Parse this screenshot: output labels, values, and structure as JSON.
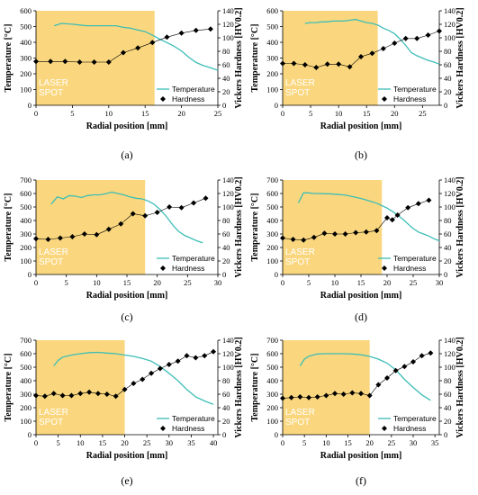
{
  "colors": {
    "laser_zone": "#FAD77E",
    "temperature": "#3DBDB6",
    "hardness": "#000000"
  },
  "chart_data": [
    {
      "type": "line",
      "panel_label": "(a)",
      "xlabel": "Radial position [mm]",
      "ylabel": "Temperature [°C]",
      "y2label": "Vickers Hardness [HV0.2]",
      "xlim": [
        0,
        25
      ],
      "xticks": [
        0,
        5,
        10,
        15,
        20,
        25
      ],
      "ylim": [
        0,
        600
      ],
      "yticks": [
        0,
        100,
        200,
        300,
        400,
        500,
        600
      ],
      "y2lim": [
        0,
        140
      ],
      "y2ticks": [
        0,
        20,
        40,
        60,
        80,
        100,
        120,
        140
      ],
      "laser_spot": {
        "x_end": 16.3,
        "label_lines": [
          "LASER",
          "SPOT"
        ]
      },
      "legend": [
        "Temperature",
        "Hardness"
      ],
      "series": [
        {
          "name": "Temperature",
          "axis": "left",
          "x": [
            2.5,
            3.5,
            5,
            6,
            7,
            8,
            9,
            10,
            11,
            12,
            13,
            14,
            15,
            16,
            17,
            18,
            19,
            20,
            21,
            22,
            23,
            24,
            25
          ],
          "y": [
            505,
            520,
            515,
            510,
            505,
            505,
            505,
            505,
            505,
            495,
            490,
            478,
            468,
            445,
            420,
            398,
            375,
            345,
            305,
            272,
            252,
            238,
            222
          ]
        },
        {
          "name": "Hardness",
          "axis": "right",
          "x": [
            0,
            2,
            4,
            6,
            8,
            10,
            12,
            14,
            16,
            18,
            20,
            22,
            24
          ],
          "y": [
            65,
            65,
            65,
            64,
            64,
            64,
            78,
            85,
            93,
            101,
            107,
            111,
            113
          ]
        }
      ]
    },
    {
      "type": "line",
      "panel_label": "(b)",
      "xlabel": "Radial position [mm]",
      "ylabel": "Temperature [°C]",
      "y2label": "Vickers Hardness [HV0.2]",
      "xlim": [
        0,
        28
      ],
      "xticks": [
        0,
        5,
        10,
        15,
        20,
        25
      ],
      "ylim": [
        0,
        600
      ],
      "yticks": [
        0,
        100,
        200,
        300,
        400,
        500,
        600
      ],
      "y2lim": [
        0,
        140
      ],
      "y2ticks": [
        0,
        20,
        40,
        60,
        80,
        100,
        120,
        140
      ],
      "laser_spot": {
        "x_end": 17,
        "label_lines": [
          "LASER",
          "SPOT"
        ]
      },
      "legend": [
        "Temperature",
        "Hardness"
      ],
      "series": [
        {
          "name": "Temperature",
          "axis": "left",
          "x": [
            4,
            5,
            6,
            7,
            8,
            9,
            10,
            11,
            12,
            13,
            14,
            15,
            16,
            17,
            18,
            19,
            20,
            21,
            22,
            23,
            24,
            25,
            26,
            27,
            28
          ],
          "y": [
            520,
            525,
            525,
            530,
            530,
            535,
            535,
            535,
            540,
            545,
            535,
            525,
            520,
            510,
            490,
            475,
            455,
            420,
            380,
            335,
            315,
            300,
            285,
            275,
            262
          ]
        },
        {
          "name": "Hardness",
          "axis": "right",
          "x": [
            0,
            2,
            4,
            6,
            8,
            10,
            12,
            14,
            16,
            18,
            20,
            22,
            24,
            26,
            28
          ],
          "y": [
            62,
            62,
            60,
            56,
            61,
            61,
            57,
            72,
            77,
            84,
            92,
            99,
            99,
            104,
            110
          ]
        }
      ]
    },
    {
      "type": "line",
      "panel_label": "(c)",
      "xlabel": "Radial position [mm]",
      "ylabel": "Temperature [°C]",
      "y2label": "Vickers Hardness [HV0.2]",
      "xlim": [
        0,
        30
      ],
      "xticks": [
        0,
        5,
        10,
        15,
        20,
        25,
        30
      ],
      "ylim": [
        0,
        700
      ],
      "yticks": [
        0,
        100,
        200,
        300,
        400,
        500,
        600,
        700
      ],
      "y2lim": [
        0,
        140
      ],
      "y2ticks": [
        0,
        20,
        40,
        60,
        80,
        100,
        120,
        140
      ],
      "laser_spot": {
        "x_end": 18,
        "label_lines": [
          "LASER",
          "SPOT"
        ]
      },
      "legend": [
        "Temperature",
        "Hardness"
      ],
      "series": [
        {
          "name": "Temperature",
          "axis": "left",
          "x": [
            2.5,
            3.5,
            4.5,
            5.5,
            6.5,
            7.5,
            8.5,
            9.5,
            10.5,
            11.5,
            12.5,
            13.5,
            14.5,
            15.5,
            16.5,
            17.5,
            18.5,
            19.5,
            20.5,
            21.5,
            22.5,
            23.5,
            24.5,
            25.5,
            26.5,
            27.5
          ],
          "y": [
            520,
            575,
            560,
            585,
            580,
            570,
            585,
            590,
            590,
            598,
            610,
            600,
            590,
            575,
            565,
            560,
            545,
            520,
            480,
            430,
            370,
            320,
            290,
            270,
            250,
            235
          ]
        },
        {
          "name": "Hardness",
          "axis": "right",
          "x": [
            0,
            2,
            4,
            6,
            8,
            10,
            12,
            14,
            16,
            18,
            20,
            22,
            24,
            26,
            28
          ],
          "y": [
            53,
            52,
            54,
            56,
            60,
            59,
            67,
            75,
            90,
            87,
            92,
            100,
            99,
            106,
            113
          ]
        }
      ]
    },
    {
      "type": "line",
      "panel_label": "(d)",
      "xlabel": "Radial position [mm]",
      "ylabel": "Temperature [°C]",
      "y2label": "Vickers Hardness [HV0.2]",
      "xlim": [
        0,
        30
      ],
      "xticks": [
        0,
        5,
        10,
        15,
        20,
        25,
        30
      ],
      "ylim": [
        0,
        700
      ],
      "yticks": [
        0,
        100,
        200,
        300,
        400,
        500,
        600,
        700
      ],
      "y2lim": [
        0,
        140
      ],
      "y2ticks": [
        0,
        20,
        40,
        60,
        80,
        100,
        120,
        140
      ],
      "laser_spot": {
        "x_end": 19,
        "label_lines": [
          "LASER",
          "SPOT"
        ]
      },
      "legend": [
        "Temperature",
        "Hardness"
      ],
      "series": [
        {
          "name": "Temperature",
          "axis": "left",
          "x": [
            3,
            4,
            5,
            6,
            7,
            8,
            9,
            10,
            11,
            12,
            13,
            14,
            15,
            16,
            17,
            18,
            19,
            20,
            21,
            22,
            23,
            24,
            25,
            26,
            27,
            28,
            29,
            30
          ],
          "y": [
            530,
            605,
            605,
            600,
            600,
            598,
            598,
            595,
            592,
            588,
            580,
            572,
            563,
            553,
            540,
            528,
            510,
            492,
            468,
            440,
            410,
            375,
            340,
            315,
            300,
            285,
            265,
            250
          ]
        },
        {
          "name": "Hardness",
          "axis": "right",
          "x": [
            0,
            2,
            4,
            6,
            8,
            10,
            12,
            14,
            16,
            18,
            20,
            21,
            22,
            24,
            26,
            28
          ],
          "y": [
            54,
            52,
            51,
            55,
            61,
            60,
            60,
            62,
            63,
            65,
            84,
            81,
            88,
            99,
            105,
            110
          ]
        }
      ]
    },
    {
      "type": "line",
      "panel_label": "(e)",
      "xlabel": "Radial position [mm]",
      "ylabel": "Temperature [°C]",
      "y2label": "Vickers Hardness [HV0.2]",
      "xlim": [
        0,
        41
      ],
      "xticks": [
        0,
        5,
        10,
        15,
        20,
        25,
        30,
        35,
        40
      ],
      "ylim": [
        0,
        700
      ],
      "yticks": [
        0,
        100,
        200,
        300,
        400,
        500,
        600,
        700
      ],
      "y2lim": [
        0,
        140
      ],
      "y2ticks": [
        0,
        20,
        40,
        60,
        80,
        100,
        120,
        140
      ],
      "laser_spot": {
        "x_end": 20,
        "label_lines": [
          "LASER",
          "SPOT"
        ]
      },
      "legend": [
        "Temperature",
        "Hardness"
      ],
      "series": [
        {
          "name": "Temperature",
          "axis": "left",
          "x": [
            4,
            5,
            6,
            8,
            10,
            12,
            14,
            16,
            18,
            20,
            22,
            24,
            26,
            28,
            30,
            32,
            34,
            36,
            38,
            40
          ],
          "y": [
            510,
            550,
            575,
            590,
            600,
            608,
            610,
            605,
            600,
            590,
            580,
            565,
            545,
            505,
            455,
            400,
            335,
            280,
            250,
            225
          ]
        },
        {
          "name": "Hardness",
          "axis": "right",
          "x": [
            0,
            2,
            4,
            6,
            8,
            10,
            12,
            14,
            16,
            18,
            20,
            22,
            24,
            26,
            28,
            30,
            32,
            34,
            36,
            38,
            40
          ],
          "y": [
            58,
            57,
            61,
            58,
            58,
            61,
            63,
            61,
            60,
            57,
            67,
            76,
            82,
            91,
            98,
            104,
            109,
            117,
            114,
            117,
            123
          ]
        }
      ]
    },
    {
      "type": "line",
      "panel_label": "(f)",
      "xlabel": "Radial position [mm]",
      "ylabel": "Temperature [°C]",
      "y2label": "Vickers Hardness [HV0.2]",
      "xlim": [
        0,
        36
      ],
      "xticks": [
        0,
        5,
        10,
        15,
        20,
        25,
        30,
        35
      ],
      "ylim": [
        0,
        700
      ],
      "yticks": [
        0,
        100,
        200,
        300,
        400,
        500,
        600,
        700
      ],
      "y2lim": [
        0,
        140
      ],
      "y2ticks": [
        0,
        20,
        40,
        60,
        80,
        100,
        120,
        140
      ],
      "laser_spot": {
        "x_end": 20,
        "label_lines": [
          "LASER",
          "SPOT"
        ]
      },
      "legend": [
        "Temperature",
        "Hardness"
      ],
      "series": [
        {
          "name": "Temperature",
          "axis": "left",
          "x": [
            4,
            5,
            6,
            7,
            8,
            10,
            12,
            14,
            16,
            18,
            20,
            22,
            24,
            26,
            28,
            30,
            32,
            34
          ],
          "y": [
            510,
            560,
            580,
            590,
            598,
            600,
            600,
            600,
            598,
            592,
            580,
            560,
            530,
            480,
            410,
            350,
            295,
            255
          ]
        },
        {
          "name": "Hardness",
          "axis": "right",
          "x": [
            0,
            2,
            4,
            6,
            8,
            10,
            12,
            14,
            16,
            18,
            20,
            22,
            24,
            26,
            28,
            30,
            32,
            34
          ],
          "y": [
            54,
            55,
            56,
            55,
            56,
            58,
            61,
            60,
            62,
            61,
            58,
            74,
            84,
            95,
            101,
            108,
            117,
            121
          ]
        }
      ]
    }
  ]
}
